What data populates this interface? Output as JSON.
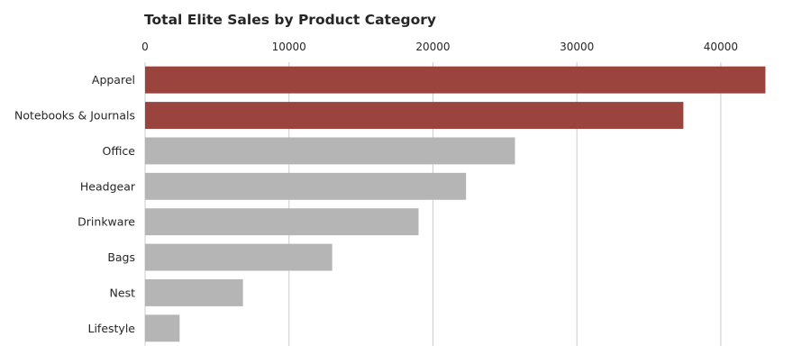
{
  "chart_data": {
    "type": "bar",
    "orientation": "horizontal",
    "title": "Total Elite Sales by Product Category",
    "xlabel": "",
    "ylabel": "",
    "x_axis_position": "top",
    "xlim": [
      0,
      43700
    ],
    "xticks": [
      0,
      10000,
      20000,
      30000,
      40000
    ],
    "grid": "vertical",
    "categories": [
      "Apparel",
      "Notebooks & Journals",
      "Office",
      "Headgear",
      "Drinkware",
      "Bags",
      "Nest",
      "Lifestyle"
    ],
    "values": [
      43100,
      37400,
      25700,
      22300,
      19000,
      13000,
      6800,
      2400
    ],
    "highlight_count": 2,
    "colors": {
      "highlight": "#9b443d",
      "default": "#b5b5b5",
      "grid": "#cccccc",
      "text": "#262626"
    }
  }
}
